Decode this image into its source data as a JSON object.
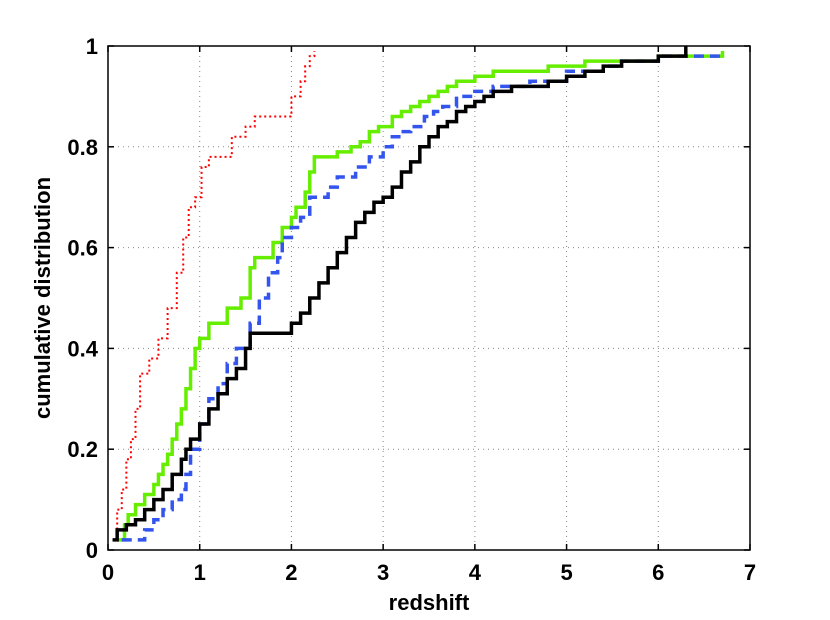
{
  "chart_data": {
    "type": "line",
    "title": "",
    "xlabel": "redshift",
    "ylabel": "cumulative distribution",
    "xlim": [
      0,
      7
    ],
    "ylim": [
      0,
      1
    ],
    "xticks": [
      0,
      1,
      2,
      3,
      4,
      5,
      6,
      7
    ],
    "yticks": [
      0,
      0.2,
      0.4,
      0.6,
      0.8,
      1
    ],
    "xtick_labels": [
      "0",
      "1",
      "2",
      "3",
      "4",
      "5",
      "6",
      "7"
    ],
    "ytick_labels": [
      "0",
      "0.2",
      "0.4",
      "0.6",
      "0.8",
      "1"
    ],
    "grid": true,
    "step": true,
    "series": [
      {
        "color": "#ff0000",
        "style": "dotted",
        "x": [
          0.05,
          0.1,
          0.15,
          0.2,
          0.25,
          0.3,
          0.35,
          0.45,
          0.55,
          0.65,
          0.75,
          0.82,
          0.88,
          0.95,
          1.02,
          1.1,
          1.35,
          1.5,
          1.6,
          2.0,
          2.1,
          2.15,
          2.2,
          2.25
        ],
        "y": [
          0.02,
          0.08,
          0.12,
          0.18,
          0.22,
          0.28,
          0.35,
          0.38,
          0.42,
          0.48,
          0.55,
          0.62,
          0.68,
          0.7,
          0.76,
          0.78,
          0.82,
          0.84,
          0.86,
          0.9,
          0.93,
          0.96,
          0.98,
          0.99
        ]
      },
      {
        "color": "#66ee00",
        "style": "solid",
        "x": [
          0.1,
          0.18,
          0.22,
          0.3,
          0.4,
          0.5,
          0.55,
          0.6,
          0.65,
          0.7,
          0.75,
          0.8,
          0.85,
          0.9,
          0.95,
          1.0,
          1.1,
          1.3,
          1.45,
          1.55,
          1.6,
          1.8,
          1.9,
          2.0,
          2.05,
          2.15,
          2.2,
          2.25,
          2.5,
          2.65,
          2.75,
          2.85,
          2.95,
          3.1,
          3.2,
          3.3,
          3.4,
          3.5,
          3.6,
          3.7,
          3.8,
          4.0,
          4.2,
          4.6,
          4.8,
          5.2,
          5.5,
          6.0,
          6.4,
          6.7
        ],
        "y": [
          0.02,
          0.05,
          0.07,
          0.09,
          0.11,
          0.13,
          0.15,
          0.17,
          0.19,
          0.22,
          0.25,
          0.28,
          0.32,
          0.36,
          0.4,
          0.42,
          0.45,
          0.48,
          0.5,
          0.56,
          0.58,
          0.61,
          0.64,
          0.66,
          0.68,
          0.71,
          0.75,
          0.78,
          0.79,
          0.8,
          0.81,
          0.83,
          0.84,
          0.86,
          0.87,
          0.88,
          0.89,
          0.9,
          0.91,
          0.92,
          0.93,
          0.94,
          0.95,
          0.95,
          0.96,
          0.97,
          0.97,
          0.98,
          0.98,
          0.99
        ]
      },
      {
        "color": "#3355ee",
        "style": "dashed",
        "x": [
          0.15,
          0.4,
          0.5,
          0.6,
          0.7,
          0.8,
          0.85,
          0.9,
          1.0,
          1.1,
          1.2,
          1.3,
          1.4,
          1.55,
          1.65,
          1.75,
          1.85,
          1.9,
          2.0,
          2.1,
          2.2,
          2.4,
          2.5,
          2.7,
          2.85,
          3.0,
          3.1,
          3.2,
          3.3,
          3.45,
          3.55,
          3.65,
          3.8,
          4.0,
          4.2,
          4.6,
          5.0,
          5.4,
          5.6,
          6.0,
          6.7
        ],
        "y": [
          0.02,
          0.04,
          0.06,
          0.08,
          0.1,
          0.12,
          0.15,
          0.2,
          0.25,
          0.3,
          0.33,
          0.37,
          0.4,
          0.45,
          0.5,
          0.55,
          0.58,
          0.62,
          0.64,
          0.66,
          0.7,
          0.72,
          0.74,
          0.76,
          0.78,
          0.8,
          0.82,
          0.83,
          0.84,
          0.86,
          0.87,
          0.88,
          0.9,
          0.91,
          0.92,
          0.93,
          0.95,
          0.96,
          0.97,
          0.98,
          0.98
        ]
      },
      {
        "color": "#000000",
        "style": "solid",
        "x": [
          0.05,
          0.1,
          0.2,
          0.3,
          0.4,
          0.5,
          0.6,
          0.7,
          0.8,
          0.85,
          0.9,
          1.0,
          1.1,
          1.2,
          1.3,
          1.4,
          1.5,
          1.55,
          2.0,
          2.1,
          2.2,
          2.3,
          2.4,
          2.5,
          2.6,
          2.7,
          2.8,
          2.9,
          3.0,
          3.1,
          3.2,
          3.3,
          3.4,
          3.5,
          3.6,
          3.7,
          3.8,
          3.9,
          4.0,
          4.1,
          4.2,
          4.4,
          4.8,
          5.0,
          5.2,
          5.4,
          5.6,
          6.0,
          6.3
        ],
        "y": [
          0.02,
          0.04,
          0.05,
          0.06,
          0.08,
          0.1,
          0.12,
          0.15,
          0.18,
          0.2,
          0.22,
          0.25,
          0.28,
          0.31,
          0.34,
          0.36,
          0.4,
          0.43,
          0.45,
          0.47,
          0.5,
          0.53,
          0.56,
          0.59,
          0.62,
          0.65,
          0.67,
          0.69,
          0.7,
          0.72,
          0.75,
          0.77,
          0.8,
          0.82,
          0.84,
          0.85,
          0.87,
          0.88,
          0.89,
          0.9,
          0.91,
          0.92,
          0.93,
          0.94,
          0.95,
          0.96,
          0.97,
          0.98,
          1.0
        ]
      }
    ]
  }
}
